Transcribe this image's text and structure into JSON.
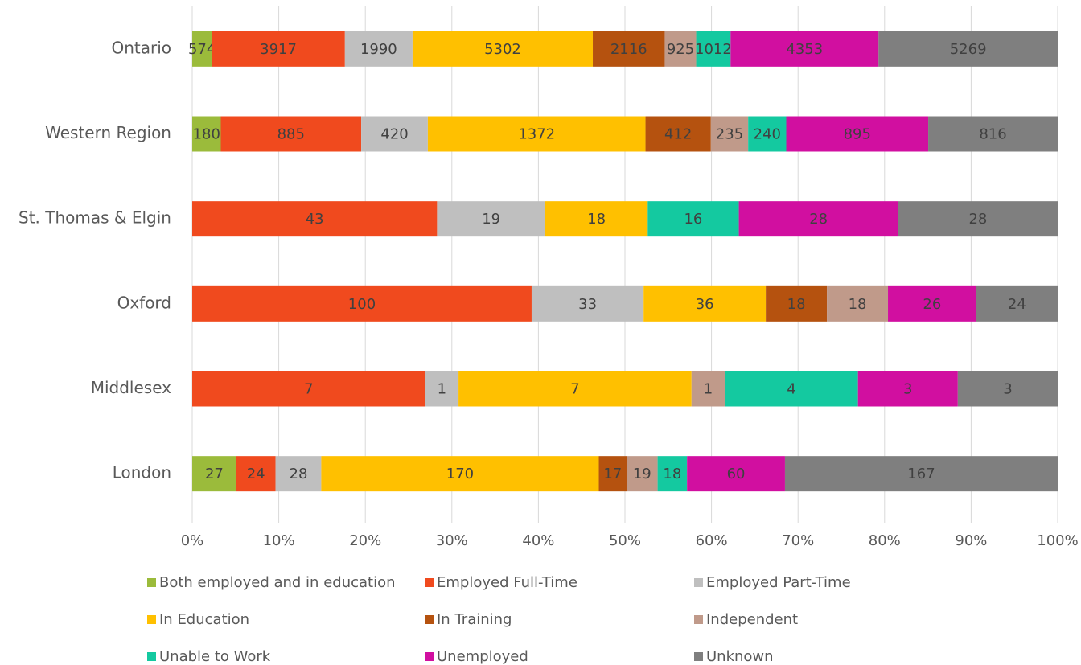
{
  "chart_data": {
    "type": "stacked-bar-horizontal-percent",
    "categories": [
      "Ontario",
      "Western Region",
      "St. Thomas & Elgin",
      "Oxford",
      "Middlesex",
      "London"
    ],
    "series": [
      {
        "name": "Both employed and in education",
        "color": "#9bbb3b",
        "values": [
          574,
          180,
          null,
          null,
          null,
          27
        ]
      },
      {
        "name": "Employed Full-Time",
        "color": "#f04a1e",
        "values": [
          3917,
          885,
          43,
          100,
          7,
          24
        ]
      },
      {
        "name": "Employed Part-Time",
        "color": "#bfbfbf",
        "values": [
          1990,
          420,
          19,
          33,
          1,
          28
        ]
      },
      {
        "name": "In Education",
        "color": "#ffc000",
        "values": [
          5302,
          1372,
          18,
          36,
          7,
          170
        ]
      },
      {
        "name": "In Training",
        "color": "#b5520f",
        "values": [
          2116,
          412,
          null,
          18,
          null,
          17
        ]
      },
      {
        "name": "Independent",
        "color": "#c09a8a",
        "values": [
          925,
          235,
          null,
          18,
          1,
          19
        ]
      },
      {
        "name": "Unable to Work",
        "color": "#14c9a0",
        "values": [
          1012,
          240,
          16,
          null,
          4,
          18
        ]
      },
      {
        "name": "Unemployed",
        "color": "#d10fa0",
        "values": [
          4353,
          895,
          28,
          26,
          3,
          60
        ]
      },
      {
        "name": "Unknown",
        "color": "#7f7f7f",
        "values": [
          5269,
          816,
          28,
          24,
          3,
          167
        ]
      }
    ],
    "xlim": [
      0,
      100
    ],
    "xticks": [
      {
        "value": 0,
        "label": "0%"
      },
      {
        "value": 10,
        "label": "10%"
      },
      {
        "value": 20,
        "label": "20%"
      },
      {
        "value": 30,
        "label": "30%"
      },
      {
        "value": 40,
        "label": "40%"
      },
      {
        "value": 50,
        "label": "50%"
      },
      {
        "value": 60,
        "label": "60%"
      },
      {
        "value": 70,
        "label": "70%"
      },
      {
        "value": 80,
        "label": "80%"
      },
      {
        "value": 90,
        "label": "90%"
      },
      {
        "value": 100,
        "label": "100%"
      }
    ],
    "grid": true,
    "legend": "bottom"
  }
}
